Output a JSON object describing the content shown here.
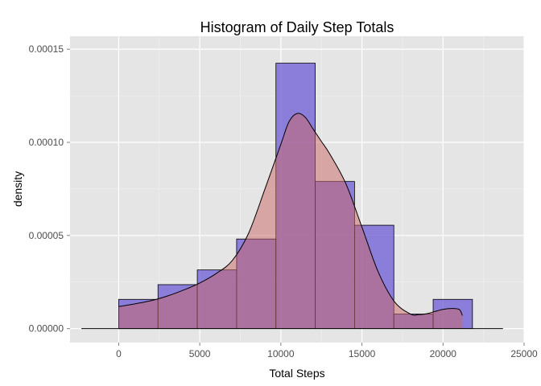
{
  "chart_data": {
    "type": "histogram",
    "title": "Histogram of Daily Step Totals",
    "xlabel": "Total Steps",
    "ylabel": "density",
    "xlim": [
      -3000,
      25000
    ],
    "ylim": [
      -7.5e-06,
      0.000157
    ],
    "x_ticks": [
      0,
      5000,
      10000,
      15000,
      20000,
      25000
    ],
    "x_tick_labels": [
      "0",
      "5000",
      "10000",
      "15000",
      "20000",
      "25000"
    ],
    "y_ticks": [
      0,
      5e-05,
      0.0001,
      0.00015
    ],
    "y_tick_labels": [
      "0.00000",
      "0.00005",
      "0.00010",
      "0.00015"
    ],
    "grid": true,
    "panel_background": "#e5e5e5",
    "grid_color": "#ffffff",
    "histogram": {
      "fill_color": "#6b5bd6",
      "fill_opacity": 0.75,
      "outline_color": "#000000",
      "bins": [
        {
          "x0": 0,
          "x1": 2424,
          "density": 1.57e-05
        },
        {
          "x0": 2424,
          "x1": 4848,
          "density": 2.36e-05
        },
        {
          "x0": 4848,
          "x1": 7272,
          "density": 3.15e-05
        },
        {
          "x0": 7272,
          "x1": 9696,
          "density": 4.81e-05
        },
        {
          "x0": 9696,
          "x1": 12120,
          "density": 0.0001425
        },
        {
          "x0": 12120,
          "x1": 14544,
          "density": 7.9e-05
        },
        {
          "x0": 14544,
          "x1": 16968,
          "density": 5.55e-05
        },
        {
          "x0": 16968,
          "x1": 19392,
          "density": 7.8e-06
        },
        {
          "x0": 19392,
          "x1": 21816,
          "density": 1.57e-05
        }
      ]
    },
    "density_curve": {
      "fill_color": "#cc6666",
      "fill_opacity": 0.5,
      "line_color": "#000000",
      "x": [
        0,
        1000,
        2000,
        3000,
        4000,
        5000,
        6000,
        7000,
        8000,
        9000,
        10000,
        10500,
        11000,
        11500,
        12000,
        12500,
        13000,
        14000,
        15000,
        16000,
        17000,
        18000,
        18500,
        19000,
        19500,
        20000,
        20500,
        21000,
        21194
      ],
      "y": [
        1.18e-05,
        1.33e-05,
        1.5e-05,
        1.75e-05,
        2.07e-05,
        2.45e-05,
        2.95e-05,
        3.65e-05,
        5.1e-05,
        7.45e-05,
        9.9e-05,
        0.000111,
        0.0001155,
        0.0001135,
        0.000107,
        0.0001005,
        9.4e-05,
        7.8e-05,
        5.45e-05,
        3.05e-05,
        1.45e-05,
        7.8e-06,
        7.5e-06,
        8e-06,
        9.2e-06,
        1.03e-05,
        1.08e-05,
        1.03e-05,
        7e-06
      ]
    },
    "baseline": {
      "x0": -2300,
      "x1": 23700,
      "y": 0
    }
  }
}
